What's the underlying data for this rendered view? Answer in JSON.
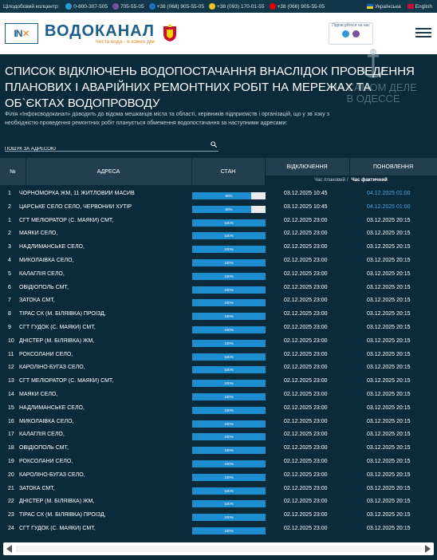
{
  "topbar": {
    "contact_center_label": "Цілодобовий колцентр:",
    "phones": [
      {
        "icon": "phone-icon",
        "number": "0-800-307-505"
      },
      {
        "icon": "viber-icon",
        "number": "705-55-05"
      },
      {
        "icon": "kyivstar-icon",
        "number": "+38 (068) 905-55-05"
      },
      {
        "icon": "lifecell-icon",
        "number": "+38 (093) 170-01-55"
      },
      {
        "icon": "vodafone-icon",
        "number": "+38 (066) 905-55-05"
      }
    ],
    "languages": [
      "Українська",
      "English"
    ]
  },
  "header": {
    "partner_logo": "IN",
    "brand_name": "ВОДОКАНАЛ",
    "brand_slogan": "Чиста вода - в кожен дім",
    "subscribe_label": "Підписуйтеся на нас"
  },
  "watermark": "НА САМОМ ДЕЛЕ В ОДЕССЕ",
  "page": {
    "title": "Список відключень водопостачання внаслідок проведення планових і аварійних ремонтних робіт на мережах та об`єктах водопроводу",
    "intro": "Філія «Інфоксводоканал» доводить до відома мешканців міста та області, керівників підприємств і організацій, що у зв`язку з необхідністю проведення ремонтних робіт планується обмеження водопостачання за наступними адресами:",
    "search_placeholder": "ПОШУК ЗА АДРЕСОЮ"
  },
  "table": {
    "headers": {
      "num": "№",
      "address": "АДРЕСА",
      "state": "СТАН",
      "off": "ВІДКЛЮЧЕННЯ",
      "on": "ПОНОВЛЕННЯ"
    },
    "legend_planned": "Час плановий",
    "legend_sep": "/",
    "legend_actual": "Час фактичний",
    "rows": [
      {
        "n": "1",
        "address": "ЧОРНОМОРКА ЖМ, 11 ЖИТЛОВИЙ МАСИВ",
        "progress": 80,
        "progress_label": "80%",
        "off": "03.12.2025 10:45",
        "on": "04.12.2025 01:00",
        "planned": true
      },
      {
        "n": "2",
        "address": "ЦАРСЬКЕ СЕЛО СЕЛО, ЧЕРВОНИЙ ХУТІР",
        "progress": 80,
        "progress_label": "80%",
        "off": "03.12.2025 10:45",
        "on": "04.12.2025 01:00",
        "planned": true
      },
      {
        "n": "1",
        "address": "СГТ МЕЛІОРАТОР (С. МАЯКИ) СМТ,",
        "progress": 100,
        "progress_label": "100%",
        "off": "02.12.2025 23:00",
        "on": "03.12.2025 20:15",
        "planned": false
      },
      {
        "n": "2",
        "address": "МАЯКИ СЕЛО,",
        "progress": 100,
        "progress_label": "100%",
        "off": "02.12.2025 23:00",
        "on": "03.12.2025 20:15",
        "planned": false
      },
      {
        "n": "3",
        "address": "НАДЛИМАНСЬКЕ СЕЛО,",
        "progress": 100,
        "progress_label": "100%",
        "off": "02.12.2025 23:00",
        "on": "03.12.2025 20:15",
        "planned": false
      },
      {
        "n": "4",
        "address": "МИКОЛАЇВКА СЕЛО,",
        "progress": 100,
        "progress_label": "100%",
        "off": "02.12.2025 23:00",
        "on": "03.12.2025 20:15",
        "planned": false
      },
      {
        "n": "5",
        "address": "КАЛАГЛІЯ СЕЛО,",
        "progress": 100,
        "progress_label": "100%",
        "off": "02.12.2025 23:00",
        "on": "03.12.2025 20:15",
        "planned": false
      },
      {
        "n": "6",
        "address": "ОВІДІОПОЛЬ СМТ,",
        "progress": 100,
        "progress_label": "100%",
        "off": "02.12.2025 23:00",
        "on": "03.12.2025 20:15",
        "planned": false
      },
      {
        "n": "7",
        "address": "ЗАТОКА СМТ,",
        "progress": 100,
        "progress_label": "100%",
        "off": "02.12.2025 23:00",
        "on": "03.12.2025 20:15",
        "planned": false
      },
      {
        "n": "8",
        "address": "ТІРАС СК (М. БІЛЯЇВКА) ПРОЇЗД,",
        "progress": 100,
        "progress_label": "100%",
        "off": "02.12.2025 23:00",
        "on": "03.12.2025 20:15",
        "planned": false
      },
      {
        "n": "9",
        "address": "СГТ ГУДОК (С. МАЯКИ) СМТ,",
        "progress": 100,
        "progress_label": "100%",
        "off": "02.12.2025 23:00",
        "on": "03.12.2025 20:15",
        "planned": false
      },
      {
        "n": "10",
        "address": "ДНІСТЕР (М. БІЛЯЇВКА) ЖМ,",
        "progress": 100,
        "progress_label": "100%",
        "off": "02.12.2025 23:00",
        "on": "03.12.2025 20:15",
        "planned": false
      },
      {
        "n": "11",
        "address": "РОКСОЛАНИ СЕЛО,",
        "progress": 100,
        "progress_label": "100%",
        "off": "02.12.2025 23:00",
        "on": "03.12.2025 20:15",
        "planned": false
      },
      {
        "n": "12",
        "address": "КАРОЛІНО-БУГАЗ СЕЛО,",
        "progress": 100,
        "progress_label": "100%",
        "off": "02.12.2025 23:00",
        "on": "03.12.2025 20:15",
        "planned": false
      },
      {
        "n": "13",
        "address": "СГТ МЕЛІОРАТОР (С. МАЯКИ) СМТ,",
        "progress": 100,
        "progress_label": "100%",
        "off": "02.12.2025 23:00",
        "on": "03.12.2025 20:15",
        "planned": false
      },
      {
        "n": "14",
        "address": "МАЯКИ СЕЛО,",
        "progress": 100,
        "progress_label": "100%",
        "off": "02.12.2025 23:00",
        "on": "03.12.2025 20:15",
        "planned": false
      },
      {
        "n": "15",
        "address": "НАДЛИМАНСЬКЕ СЕЛО,",
        "progress": 100,
        "progress_label": "100%",
        "off": "02.12.2025 23:00",
        "on": "03.12.2025 20:15",
        "planned": false
      },
      {
        "n": "16",
        "address": "МИКОЛАЇВКА СЕЛО,",
        "progress": 100,
        "progress_label": "100%",
        "off": "02.12.2025 23:00",
        "on": "03.12.2025 20:15",
        "planned": false
      },
      {
        "n": "17",
        "address": "КАЛАГЛІЯ СЕЛО,",
        "progress": 100,
        "progress_label": "100%",
        "off": "02.12.2025 23:00",
        "on": "03.12.2025 20:15",
        "planned": false
      },
      {
        "n": "18",
        "address": "ОВІДІОПОЛЬ СМТ,",
        "progress": 100,
        "progress_label": "100%",
        "off": "02.12.2025 23:00",
        "on": "03.12.2025 20:15",
        "planned": false
      },
      {
        "n": "19",
        "address": "РОКСОЛАНИ СЕЛО,",
        "progress": 100,
        "progress_label": "100%",
        "off": "02.12.2025 23:00",
        "on": "03.12.2025 20:15",
        "planned": false
      },
      {
        "n": "20",
        "address": "КАРОЛІНО-БУГАЗ СЕЛО,",
        "progress": 100,
        "progress_label": "100%",
        "off": "02.12.2025 23:00",
        "on": "03.12.2025 20:15",
        "planned": false
      },
      {
        "n": "21",
        "address": "ЗАТОКА СМТ,",
        "progress": 100,
        "progress_label": "100%",
        "off": "02.12.2025 23:00",
        "on": "03.12.2025 20:15",
        "planned": false
      },
      {
        "n": "22",
        "address": "ДНІСТЕР (М. БІЛЯЇВКА) ЖМ,",
        "progress": 100,
        "progress_label": "100%",
        "off": "02.12.2025 23:00",
        "on": "03.12.2025 20:15",
        "planned": false
      },
      {
        "n": "23",
        "address": "ТІРАС СК (М. БІЛЯЇВКА) ПРОЇЗД,",
        "progress": 100,
        "progress_label": "100%",
        "off": "02.12.2025 23:00",
        "on": "03.12.2025 20:15",
        "planned": false
      },
      {
        "n": "24",
        "address": "СГТ ГУДОК (С. МАЯКИ) СМТ,",
        "progress": 100,
        "progress_label": "100%",
        "off": "02.12.2025 23:00",
        "on": "03.12.2025 20:15",
        "planned": false
      }
    ]
  },
  "colors": {
    "page_bg": "#0b2b3a",
    "header_bg": "#213f4f",
    "progress_fill": "#1e8dd0",
    "planned_time": "#4aa7e6"
  }
}
